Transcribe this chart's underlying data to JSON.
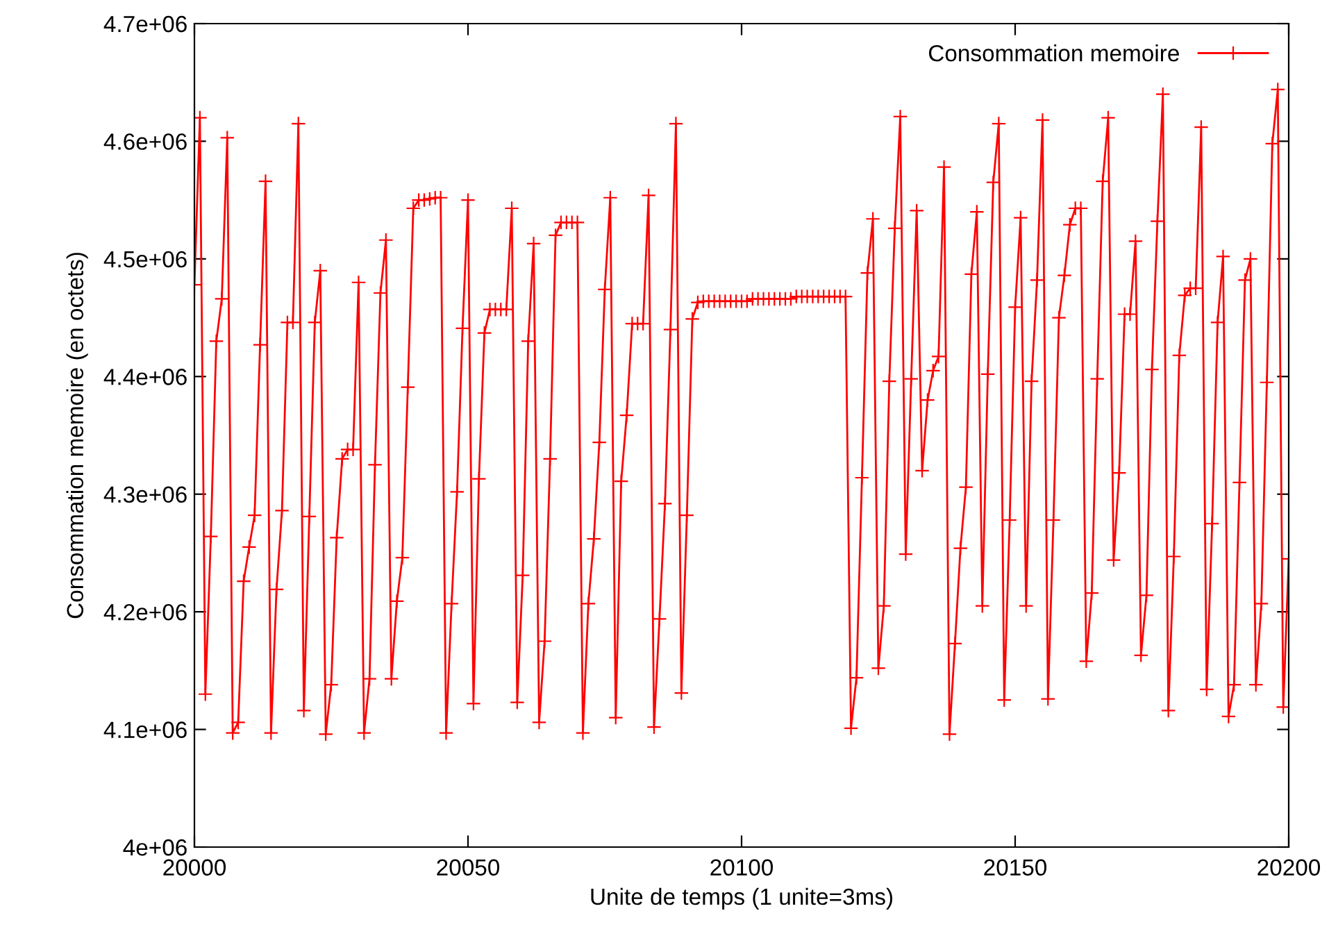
{
  "chart_data": {
    "type": "line",
    "xlabel": "Unite de temps (1 unite=3ms)",
    "ylabel": "Consommation memoire (en octets)",
    "xlim": [
      20000,
      20200
    ],
    "xticks": [
      20000,
      20050,
      20100,
      20150,
      20200
    ],
    "ylim": [
      4000000,
      4700000
    ],
    "yticks": [
      {
        "value": 4000000,
        "label": "4e+06"
      },
      {
        "value": 4100000,
        "label": "4.1e+06"
      },
      {
        "value": 4200000,
        "label": "4.2e+06"
      },
      {
        "value": 4300000,
        "label": "4.3e+06"
      },
      {
        "value": 4400000,
        "label": "4.4e+06"
      },
      {
        "value": 4500000,
        "label": "4.5e+06"
      },
      {
        "value": 4600000,
        "label": "4.6e+06"
      },
      {
        "value": 4700000,
        "label": "4.7e+06"
      }
    ],
    "grid": false,
    "legend": "top right",
    "marker": "cross",
    "line_style": "solid",
    "x": [
      20000,
      20001,
      20002,
      20003,
      20004,
      20005,
      20006,
      20007,
      20008,
      20009,
      20010,
      20011,
      20012,
      20013,
      20014,
      20015,
      20016,
      20017,
      20018,
      20019,
      20020,
      20021,
      20022,
      20023,
      20024,
      20025,
      20026,
      20027,
      20028,
      20029,
      20030,
      20031,
      20032,
      20033,
      20034,
      20035,
      20036,
      20037,
      20038,
      20039,
      20040,
      20041,
      20042,
      20043,
      20044,
      20045,
      20046,
      20047,
      20048,
      20049,
      20050,
      20051,
      20052,
      20053,
      20054,
      20055,
      20056,
      20057,
      20058,
      20059,
      20060,
      20061,
      20062,
      20063,
      20064,
      20065,
      20066,
      20067,
      20068,
      20069,
      20070,
      20071,
      20072,
      20073,
      20074,
      20075,
      20076,
      20077,
      20078,
      20079,
      20080,
      20081,
      20082,
      20083,
      20084,
      20085,
      20086,
      20087,
      20088,
      20089,
      20090,
      20091,
      20092,
      20093,
      20094,
      20095,
      20096,
      20097,
      20098,
      20099,
      20100,
      20101,
      20102,
      20103,
      20104,
      20105,
      20106,
      20107,
      20108,
      20109,
      20110,
      20111,
      20112,
      20113,
      20114,
      20115,
      20116,
      20117,
      20118,
      20119,
      20120,
      20121,
      20122,
      20123,
      20124,
      20125,
      20126,
      20127,
      20128,
      20129,
      20130,
      20131,
      20132,
      20133,
      20134,
      20135,
      20136,
      20137,
      20138,
      20139,
      20140,
      20141,
      20142,
      20143,
      20144,
      20145,
      20146,
      20147,
      20148,
      20149,
      20150,
      20151,
      20152,
      20153,
      20154,
      20155,
      20156,
      20157,
      20158,
      20159,
      20160,
      20161,
      20162,
      20163,
      20164,
      20165,
      20166,
      20167,
      20168,
      20169,
      20170,
      20171,
      20172,
      20173,
      20174,
      20175,
      20176,
      20177,
      20178,
      20179,
      20180,
      20181,
      20182,
      20183,
      20184,
      20185,
      20186,
      20187,
      20188,
      20189,
      20190,
      20191,
      20192,
      20193,
      20194,
      20195,
      20196,
      20197,
      20198,
      20199,
      20200
    ],
    "series": [
      {
        "name": "Consommation memoire",
        "color": "#ff0000",
        "values": [
          4478000,
          4620000,
          4130000,
          4264000,
          4430000,
          4466000,
          4603000,
          4097000,
          4106000,
          4226000,
          4255000,
          4282000,
          4427000,
          4566000,
          4097000,
          4219000,
          4286000,
          4446000,
          4446000,
          4615000,
          4116000,
          4281000,
          4446000,
          4490000,
          4096000,
          4138000,
          4263000,
          4330000,
          4338000,
          4338000,
          4480000,
          4097000,
          4143000,
          4325000,
          4471000,
          4516000,
          4143000,
          4209000,
          4246000,
          4391000,
          4543000,
          4550000,
          4550000,
          4551000,
          4552000,
          4552000,
          4097000,
          4207000,
          4302000,
          4441000,
          4550000,
          4122000,
          4313000,
          4437000,
          4457000,
          4457000,
          4457000,
          4457000,
          4543000,
          4123000,
          4231000,
          4430000,
          4513000,
          4106000,
          4175000,
          4330000,
          4520000,
          4531000,
          4531000,
          4531000,
          4531000,
          4097000,
          4207000,
          4262000,
          4344000,
          4474000,
          4552000,
          4110000,
          4311000,
          4367000,
          4445000,
          4445000,
          4445000,
          4554000,
          4102000,
          4194000,
          4292000,
          4440000,
          4615000,
          4131000,
          4282000,
          4449000,
          4463000,
          4464000,
          4464000,
          4464000,
          4464000,
          4464000,
          4464000,
          4464000,
          4464000,
          4464000,
          4466000,
          4466000,
          4466000,
          4466000,
          4466000,
          4466000,
          4466000,
          4466000,
          4468000,
          4468000,
          4468000,
          4468000,
          4468000,
          4468000,
          4468000,
          4468000,
          4468000,
          4468000,
          4101000,
          4144000,
          4314000,
          4488000,
          4534000,
          4152000,
          4205000,
          4396000,
          4526000,
          4621000,
          4249000,
          4398000,
          4541000,
          4320000,
          4380000,
          4405000,
          4417000,
          4578000,
          4096000,
          4173000,
          4254000,
          4306000,
          4487000,
          4540000,
          4205000,
          4402000,
          4565000,
          4615000,
          4125000,
          4278000,
          4459000,
          4535000,
          4205000,
          4396000,
          4482000,
          4618000,
          4126000,
          4278000,
          4450000,
          4486000,
          4529000,
          4543000,
          4543000,
          4158000,
          4216000,
          4398000,
          4566000,
          4620000,
          4244000,
          4318000,
          4453000,
          4453000,
          4515000,
          4163000,
          4214000,
          4406000,
          4532000,
          4640000,
          4116000,
          4247000,
          4418000,
          4469000,
          4475000,
          4475000,
          4612000,
          4134000,
          4275000,
          4446000,
          4502000,
          4111000,
          4138000,
          4310000,
          4482000,
          4500000,
          4138000,
          4207000,
          4395000,
          4598000,
          4644000,
          4119000,
          4245000
        ]
      }
    ]
  }
}
